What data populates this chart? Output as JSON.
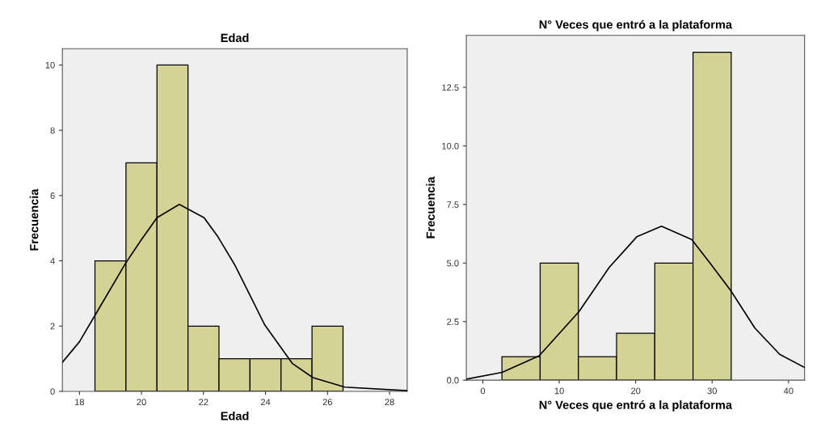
{
  "chart_data": [
    {
      "type": "histogram",
      "title": "Edad",
      "xlabel": "Edad",
      "ylabel": "Frecuencia",
      "bins": [
        18.5,
        19.5,
        20.5,
        21.5,
        22.5,
        23.5,
        24.5,
        25.5,
        26.5
      ],
      "values": [
        4,
        7,
        10,
        2,
        1,
        1,
        1,
        2
      ],
      "color": "#d4d294",
      "xlim": [
        17.45,
        28.57
      ],
      "xticks": [
        18,
        20,
        22,
        24,
        26,
        28
      ],
      "ylim": [
        0,
        10.5
      ],
      "yticks": [
        0,
        2,
        4,
        6,
        8,
        10
      ],
      "grid": false,
      "series": [
        {
          "type": "line",
          "color": "#000000",
          "x": [
            17.45,
            18.0,
            18.47,
            19.49,
            20.0,
            20.5,
            21.22,
            22.02,
            22.47,
            23.0,
            23.45,
            23.98,
            24.87,
            25.53,
            26.56,
            28.57
          ],
          "values": [
            0.89,
            1.52,
            2.28,
            3.93,
            4.65,
            5.32,
            5.73,
            5.32,
            4.73,
            3.89,
            3.04,
            2.03,
            0.85,
            0.42,
            0.13,
            0.02
          ]
        }
      ]
    },
    {
      "type": "histogram",
      "title": "N° Veces que entró a la plataforma",
      "xlabel": "N° Veces que entró a la plataforma",
      "ylabel": "Frecuencia",
      "bins": [
        2.5,
        7.5,
        12.5,
        17.5,
        22.5,
        27.5,
        32.5
      ],
      "values": [
        1,
        5,
        1,
        2,
        5,
        14
      ],
      "color": "#d4d294",
      "xlim": [
        -2.16,
        42.1
      ],
      "xticks": [
        0,
        10,
        20,
        30,
        40
      ],
      "ylim": [
        0,
        14.72
      ],
      "yticks": [
        {
          "value": 0,
          "label": "0.0"
        },
        {
          "value": 2.5,
          "label": "2.5"
        },
        {
          "value": 5,
          "label": "5.0"
        },
        {
          "value": 7.5,
          "label": "7.5"
        },
        {
          "value": 10,
          "label": "10.0"
        },
        {
          "value": 12.5,
          "label": "12.5"
        }
      ],
      "grid": false,
      "series": [
        {
          "type": "line",
          "color": "#000000",
          "x": [
            -2.16,
            2.52,
            7.37,
            12.59,
            16.55,
            20.14,
            23.38,
            27.34,
            29.86,
            32.45,
            35.6,
            38.85,
            42.1
          ],
          "values": [
            0.04,
            0.33,
            1.04,
            2.93,
            4.82,
            6.12,
            6.57,
            6.0,
            4.94,
            3.82,
            2.22,
            1.1,
            0.54
          ]
        }
      ]
    }
  ]
}
